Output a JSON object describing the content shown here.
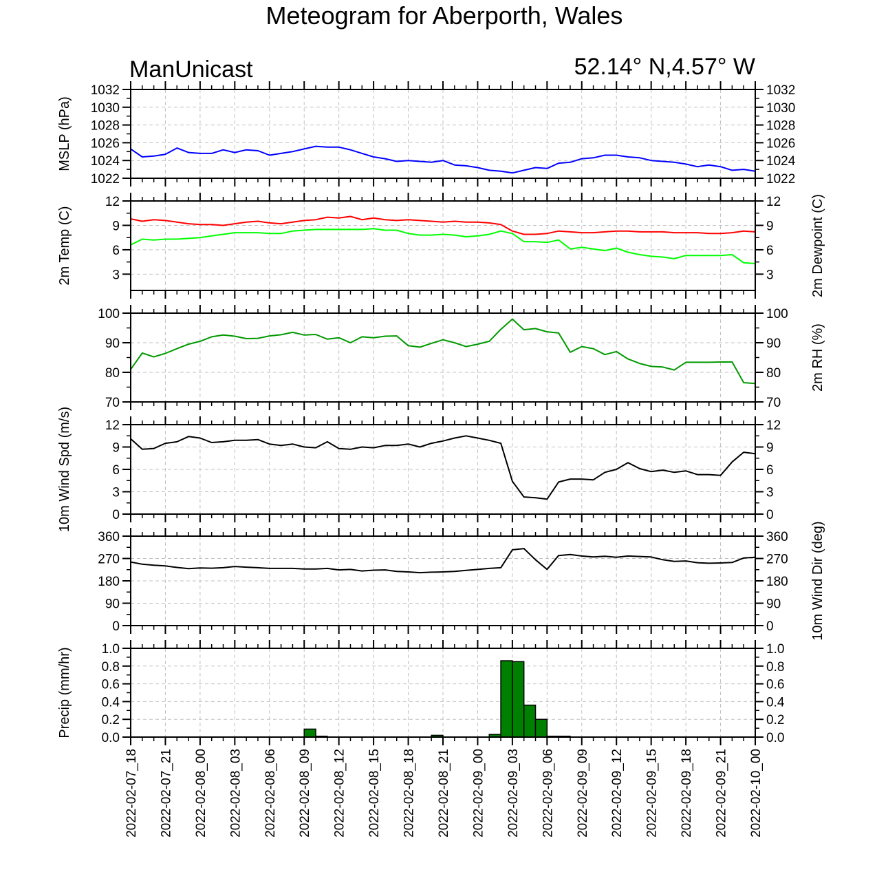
{
  "header": {
    "title": "Meteogram for Aberporth, Wales",
    "model_label": "ManUnicast",
    "location": "52.14° N,4.57° W"
  },
  "chart_data": {
    "type": "line",
    "x_axis": {
      "hours_start": "2022-02-07_18",
      "tick_labels": [
        "2022-02-07_18",
        "2022-02-07_21",
        "2022-02-08_00",
        "2022-02-08_03",
        "2022-02-08_06",
        "2022-02-08_09",
        "2022-02-08_12",
        "2022-02-08_15",
        "2022-02-08_18",
        "2022-02-08_21",
        "2022-02-09_00",
        "2022-02-09_03",
        "2022-02-09_06",
        "2022-02-09_09",
        "2022-02-09_12",
        "2022-02-09_15",
        "2022-02-09_18",
        "2022-02-09_21",
        "2022-02-10_00"
      ],
      "hours": [
        0,
        1,
        2,
        3,
        4,
        5,
        6,
        7,
        8,
        9,
        10,
        11,
        12,
        13,
        14,
        15,
        16,
        17,
        18,
        19,
        20,
        21,
        22,
        23,
        24,
        25,
        26,
        27,
        28,
        29,
        30,
        31,
        32,
        33,
        34,
        35,
        36,
        37,
        38,
        39,
        40,
        41,
        42,
        43,
        44,
        45,
        46,
        47,
        48,
        49,
        50,
        51,
        52,
        53,
        54
      ]
    },
    "panels": [
      {
        "id": "mslp",
        "type": "line",
        "ylabel_left": "MSLP (hPa)",
        "ylabel_right": "",
        "ylim": [
          1022,
          1032
        ],
        "ticks": [
          1022,
          1024,
          1026,
          1028,
          1030,
          1032
        ],
        "tick_labels_left": [
          "1022",
          "1024",
          "1026",
          "1028",
          "1030",
          "1032"
        ],
        "tick_labels_right": [
          "1022",
          "1024",
          "1026",
          "1028",
          "1030",
          "1032"
        ],
        "grid": true,
        "series": [
          {
            "color": "#0000ff",
            "values": [
              1025.3,
              1024.4,
              1024.5,
              1024.7,
              1025.4,
              1024.9,
              1024.8,
              1024.8,
              1025.2,
              1024.9,
              1025.2,
              1025.1,
              1024.6,
              1024.8,
              1025.0,
              1025.3,
              1025.6,
              1025.5,
              1025.5,
              1025.2,
              1024.8,
              1024.4,
              1024.2,
              1023.9,
              1024.0,
              1023.9,
              1023.8,
              1024.0,
              1023.5,
              1023.4,
              1023.2,
              1022.9,
              1022.8,
              1022.6,
              1022.9,
              1023.2,
              1023.1,
              1023.7,
              1023.8,
              1024.2,
              1024.3,
              1024.6,
              1024.6,
              1024.4,
              1024.3,
              1024.0,
              1023.9,
              1023.8,
              1023.6,
              1023.3,
              1023.5,
              1023.3,
              1022.9,
              1023.0,
              1022.8
            ]
          }
        ]
      },
      {
        "id": "temp",
        "type": "line",
        "ylabel_left": "2m Temp (C)",
        "ylabel_right": "2m Dewpoint (C)",
        "ylim": [
          1,
          12
        ],
        "ticks": [
          3,
          6,
          9,
          12
        ],
        "tick_labels_left": [
          "3",
          "6",
          "9",
          "12"
        ],
        "tick_labels_right": [
          "3",
          "6",
          "9",
          "12"
        ],
        "grid": true,
        "series": [
          {
            "color": "#ff0000",
            "values": [
              9.8,
              9.5,
              9.7,
              9.6,
              9.4,
              9.2,
              9.1,
              9.1,
              9.0,
              9.2,
              9.4,
              9.5,
              9.3,
              9.2,
              9.4,
              9.6,
              9.7,
              10.0,
              9.9,
              10.1,
              9.7,
              9.9,
              9.7,
              9.6,
              9.7,
              9.6,
              9.5,
              9.4,
              9.5,
              9.4,
              9.4,
              9.3,
              9.1,
              8.3,
              7.9,
              7.9,
              8.0,
              8.3,
              8.2,
              8.1,
              8.1,
              8.2,
              8.3,
              8.3,
              8.2,
              8.2,
              8.2,
              8.1,
              8.1,
              8.1,
              8.0,
              8.0,
              8.1,
              8.3,
              8.2
            ]
          },
          {
            "color": "#00ff00",
            "values": [
              6.6,
              7.3,
              7.2,
              7.3,
              7.3,
              7.4,
              7.5,
              7.7,
              7.9,
              8.1,
              8.1,
              8.1,
              8.0,
              8.0,
              8.3,
              8.4,
              8.5,
              8.5,
              8.5,
              8.5,
              8.5,
              8.6,
              8.4,
              8.4,
              8.0,
              7.8,
              7.8,
              7.9,
              7.8,
              7.6,
              7.7,
              7.9,
              8.3,
              8.0,
              7.0,
              7.0,
              6.9,
              7.2,
              6.1,
              6.3,
              6.1,
              5.9,
              6.2,
              5.7,
              5.4,
              5.2,
              5.1,
              4.9,
              5.3,
              5.3,
              5.3,
              5.3,
              5.4,
              4.4,
              4.3
            ]
          }
        ]
      },
      {
        "id": "rh",
        "type": "line",
        "ylabel_left": "",
        "ylabel_right": "2m RH (%)",
        "ylim": [
          70,
          100
        ],
        "ticks": [
          70,
          80,
          90,
          100
        ],
        "tick_labels_left": [
          "70",
          "80",
          "90",
          "100"
        ],
        "tick_labels_right": [
          "70",
          "80",
          "90",
          "100"
        ],
        "grid": true,
        "series": [
          {
            "color": "#009900",
            "values": [
              81,
              86.5,
              85.2,
              86.4,
              88,
              89.5,
              90.5,
              92,
              92.6,
              92.2,
              91.4,
              91.5,
              92.3,
              92.7,
              93.5,
              92.6,
              92.8,
              91.2,
              91.7,
              90,
              92,
              91.7,
              92.2,
              92.3,
              89,
              88.5,
              89.8,
              91,
              90,
              88.7,
              89.5,
              90.5,
              94.5,
              98,
              94.4,
              94.8,
              93.7,
              93.3,
              86.8,
              88.7,
              88,
              86,
              87,
              84.5,
              83,
              82,
              81.8,
              80.8,
              83.4,
              83.4,
              83.4,
              83.5,
              83.5,
              76.5,
              76.2
            ]
          }
        ]
      },
      {
        "id": "wspd",
        "type": "line",
        "ylabel_left": "10m Wind Spd (m/s)",
        "ylabel_right": "",
        "ylim": [
          0,
          12
        ],
        "ticks": [
          0,
          3,
          6,
          9,
          12
        ],
        "tick_labels_left": [
          "0",
          "3",
          "6",
          "9",
          "12"
        ],
        "tick_labels_right": [
          "0",
          "3",
          "6",
          "9",
          "12"
        ],
        "grid": true,
        "series": [
          {
            "color": "#000000",
            "values": [
              10.1,
              8.7,
              8.8,
              9.5,
              9.7,
              10.4,
              10.2,
              9.6,
              9.7,
              9.9,
              9.9,
              10.0,
              9.4,
              9.2,
              9.4,
              9.0,
              8.9,
              9.7,
              8.8,
              8.7,
              9.0,
              8.9,
              9.2,
              9.2,
              9.4,
              9.0,
              9.5,
              9.8,
              10.2,
              10.5,
              10.2,
              9.9,
              9.5,
              4.4,
              2.3,
              2.2,
              2.0,
              4.3,
              4.7,
              4.7,
              4.6,
              5.6,
              6.0,
              6.9,
              6.1,
              5.7,
              5.9,
              5.6,
              5.8,
              5.3,
              5.3,
              5.2,
              7.0,
              8.3,
              8.1
            ]
          }
        ]
      },
      {
        "id": "wdir",
        "type": "line",
        "ylabel_left": "",
        "ylabel_right": "10m Wind Dir (deg)",
        "ylim": [
          0,
          360
        ],
        "ticks": [
          0,
          90,
          180,
          270,
          360
        ],
        "tick_labels_left": [
          "0",
          "90",
          "180",
          "270",
          "360"
        ],
        "tick_labels_right": [
          "0",
          "90",
          "180",
          "270",
          "360"
        ],
        "grid": true,
        "series": [
          {
            "color": "#000000",
            "values": [
              256,
              247,
              243,
              240,
              234,
              229,
              232,
              231,
              233,
              238,
              235,
              233,
              230,
              230,
              230,
              228,
              228,
              230,
              224,
              226,
              220,
              223,
              224,
              218,
              216,
              213,
              215,
              216,
              218,
              222,
              226,
              230,
              233,
              305,
              310,
              265,
              226,
              282,
              286,
              280,
              276,
              279,
              275,
              280,
              278,
              276,
              265,
              258,
              260,
              253,
              251,
              252,
              254,
              272,
              275
            ]
          }
        ]
      },
      {
        "id": "precip",
        "type": "bar",
        "ylabel_left": "Precip (mm/hr)",
        "ylabel_right": "",
        "ylim": [
          0,
          1.0
        ],
        "ticks": [
          0.0,
          0.2,
          0.4,
          0.6,
          0.8,
          1.0
        ],
        "tick_labels_left": [
          "0.0",
          "0.2",
          "0.4",
          "0.6",
          "0.8",
          "1.0"
        ],
        "tick_labels_right": [
          "0.0",
          "0.2",
          "0.4",
          "0.6",
          "0.8",
          "1.0"
        ],
        "grid": true,
        "bar_color": "#008000",
        "values": [
          0,
          0,
          0,
          0,
          0,
          0,
          0,
          0,
          0,
          0,
          0,
          0,
          0,
          0,
          0,
          0.09,
          0.01,
          0,
          0,
          0,
          0,
          0,
          0,
          0,
          0,
          0,
          0.02,
          0,
          0,
          0,
          0,
          0.03,
          0.86,
          0.85,
          0.36,
          0.2,
          0.01,
          0.01,
          0,
          0,
          0,
          0,
          0,
          0,
          0,
          0,
          0,
          0,
          0,
          0,
          0,
          0,
          0,
          0
        ]
      }
    ]
  }
}
